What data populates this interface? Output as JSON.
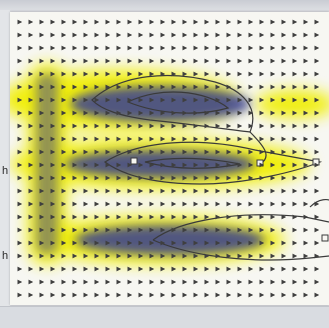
{
  "side_labels": {
    "upper": "h",
    "lower": "h"
  },
  "colors": {
    "background": "#f7f7f2",
    "field_high": "#2a2f9a",
    "field_low": "#f3f000",
    "contour": "#3a3a3a",
    "vector": "#3f3f3f"
  },
  "icons": {
    "arrow": "vector-arrow-icon",
    "probe": "probe-marker-icon"
  }
}
